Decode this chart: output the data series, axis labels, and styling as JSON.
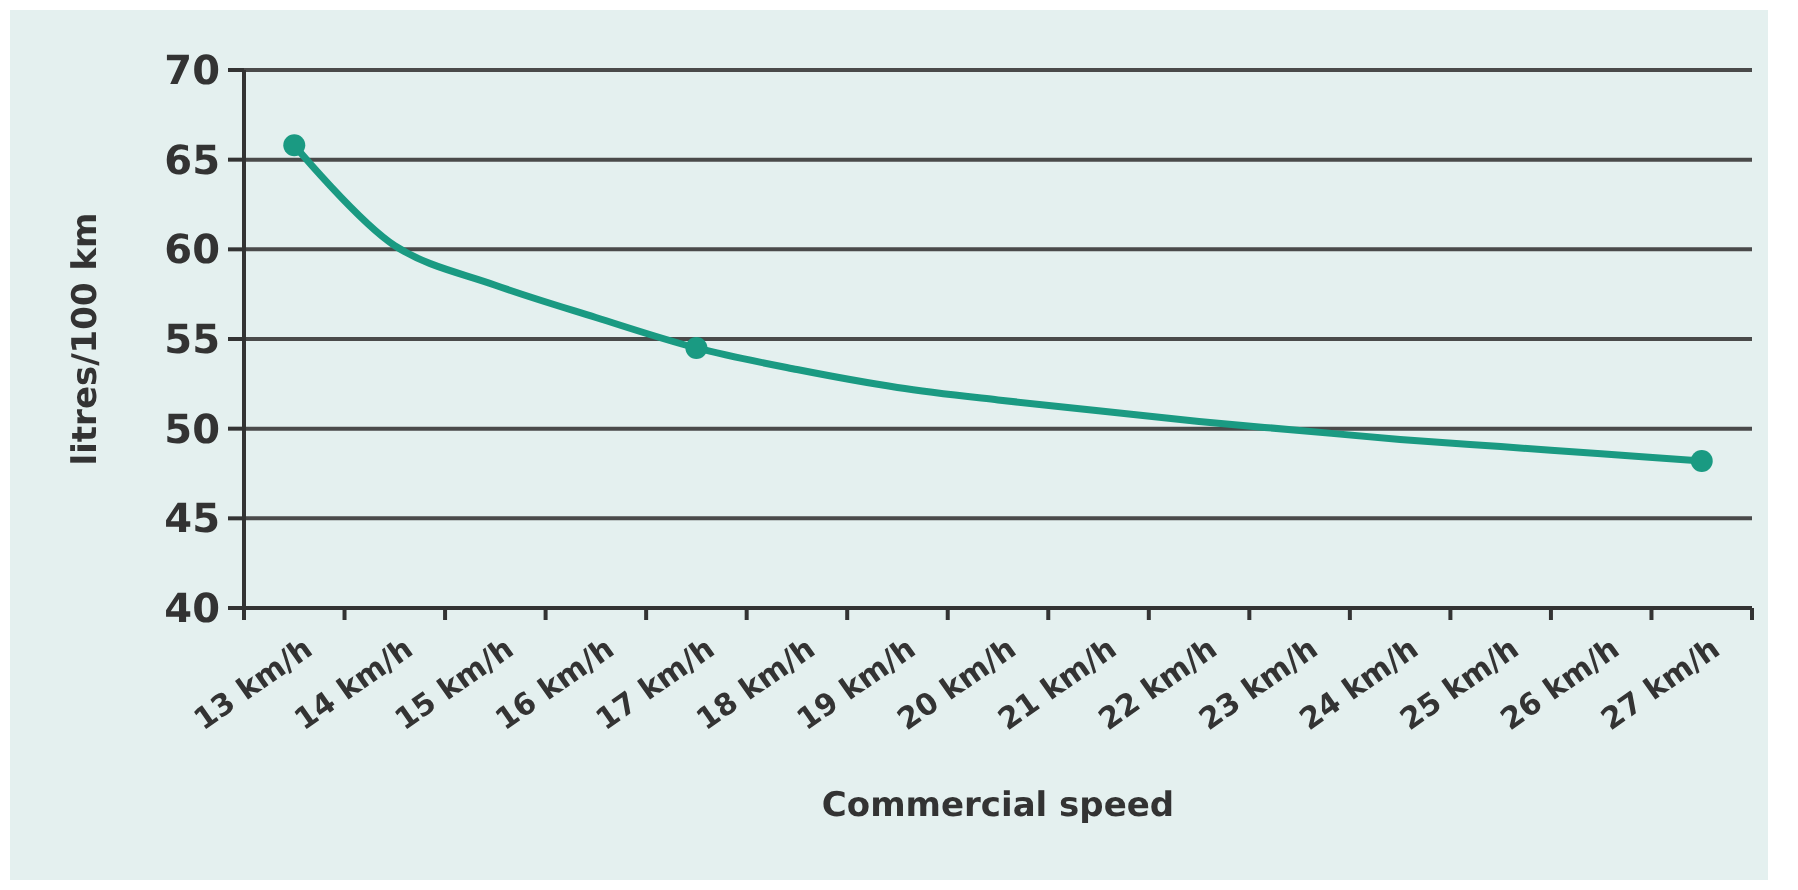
{
  "chart_data": {
    "type": "line",
    "xlabel": "Commercial speed",
    "ylabel": "litres/100 km",
    "categories": [
      "13 km/h",
      "14 km/h",
      "15 km/h",
      "16 km/h",
      "17 km/h",
      "18 km/h",
      "19 km/h",
      "20 km/h",
      "21 km/h",
      "22 km/h",
      "23 km/h",
      "24 km/h",
      "25 km/h",
      "26 km/h",
      "27 km/h"
    ],
    "series": [
      {
        "color": "#1a9a82",
        "marker": "none",
        "values": [
          65.8,
          60.2,
          58.0,
          56.2,
          54.5,
          53.3,
          52.3,
          51.6,
          51.0,
          50.4,
          49.9,
          49.4,
          49.0,
          48.6,
          48.2
        ]
      },
      {
        "type": "scatter",
        "color": "#1a9a82",
        "marker": "circle",
        "x": [
          "13 km/h",
          "17 km/h",
          "27 km/h"
        ],
        "values": [
          65.8,
          54.5,
          48.2
        ]
      }
    ],
    "ylim": [
      40,
      70
    ],
    "yticks": [
      40,
      45,
      50,
      55,
      60,
      65,
      70
    ],
    "grid": "y",
    "line_style": "solid"
  }
}
